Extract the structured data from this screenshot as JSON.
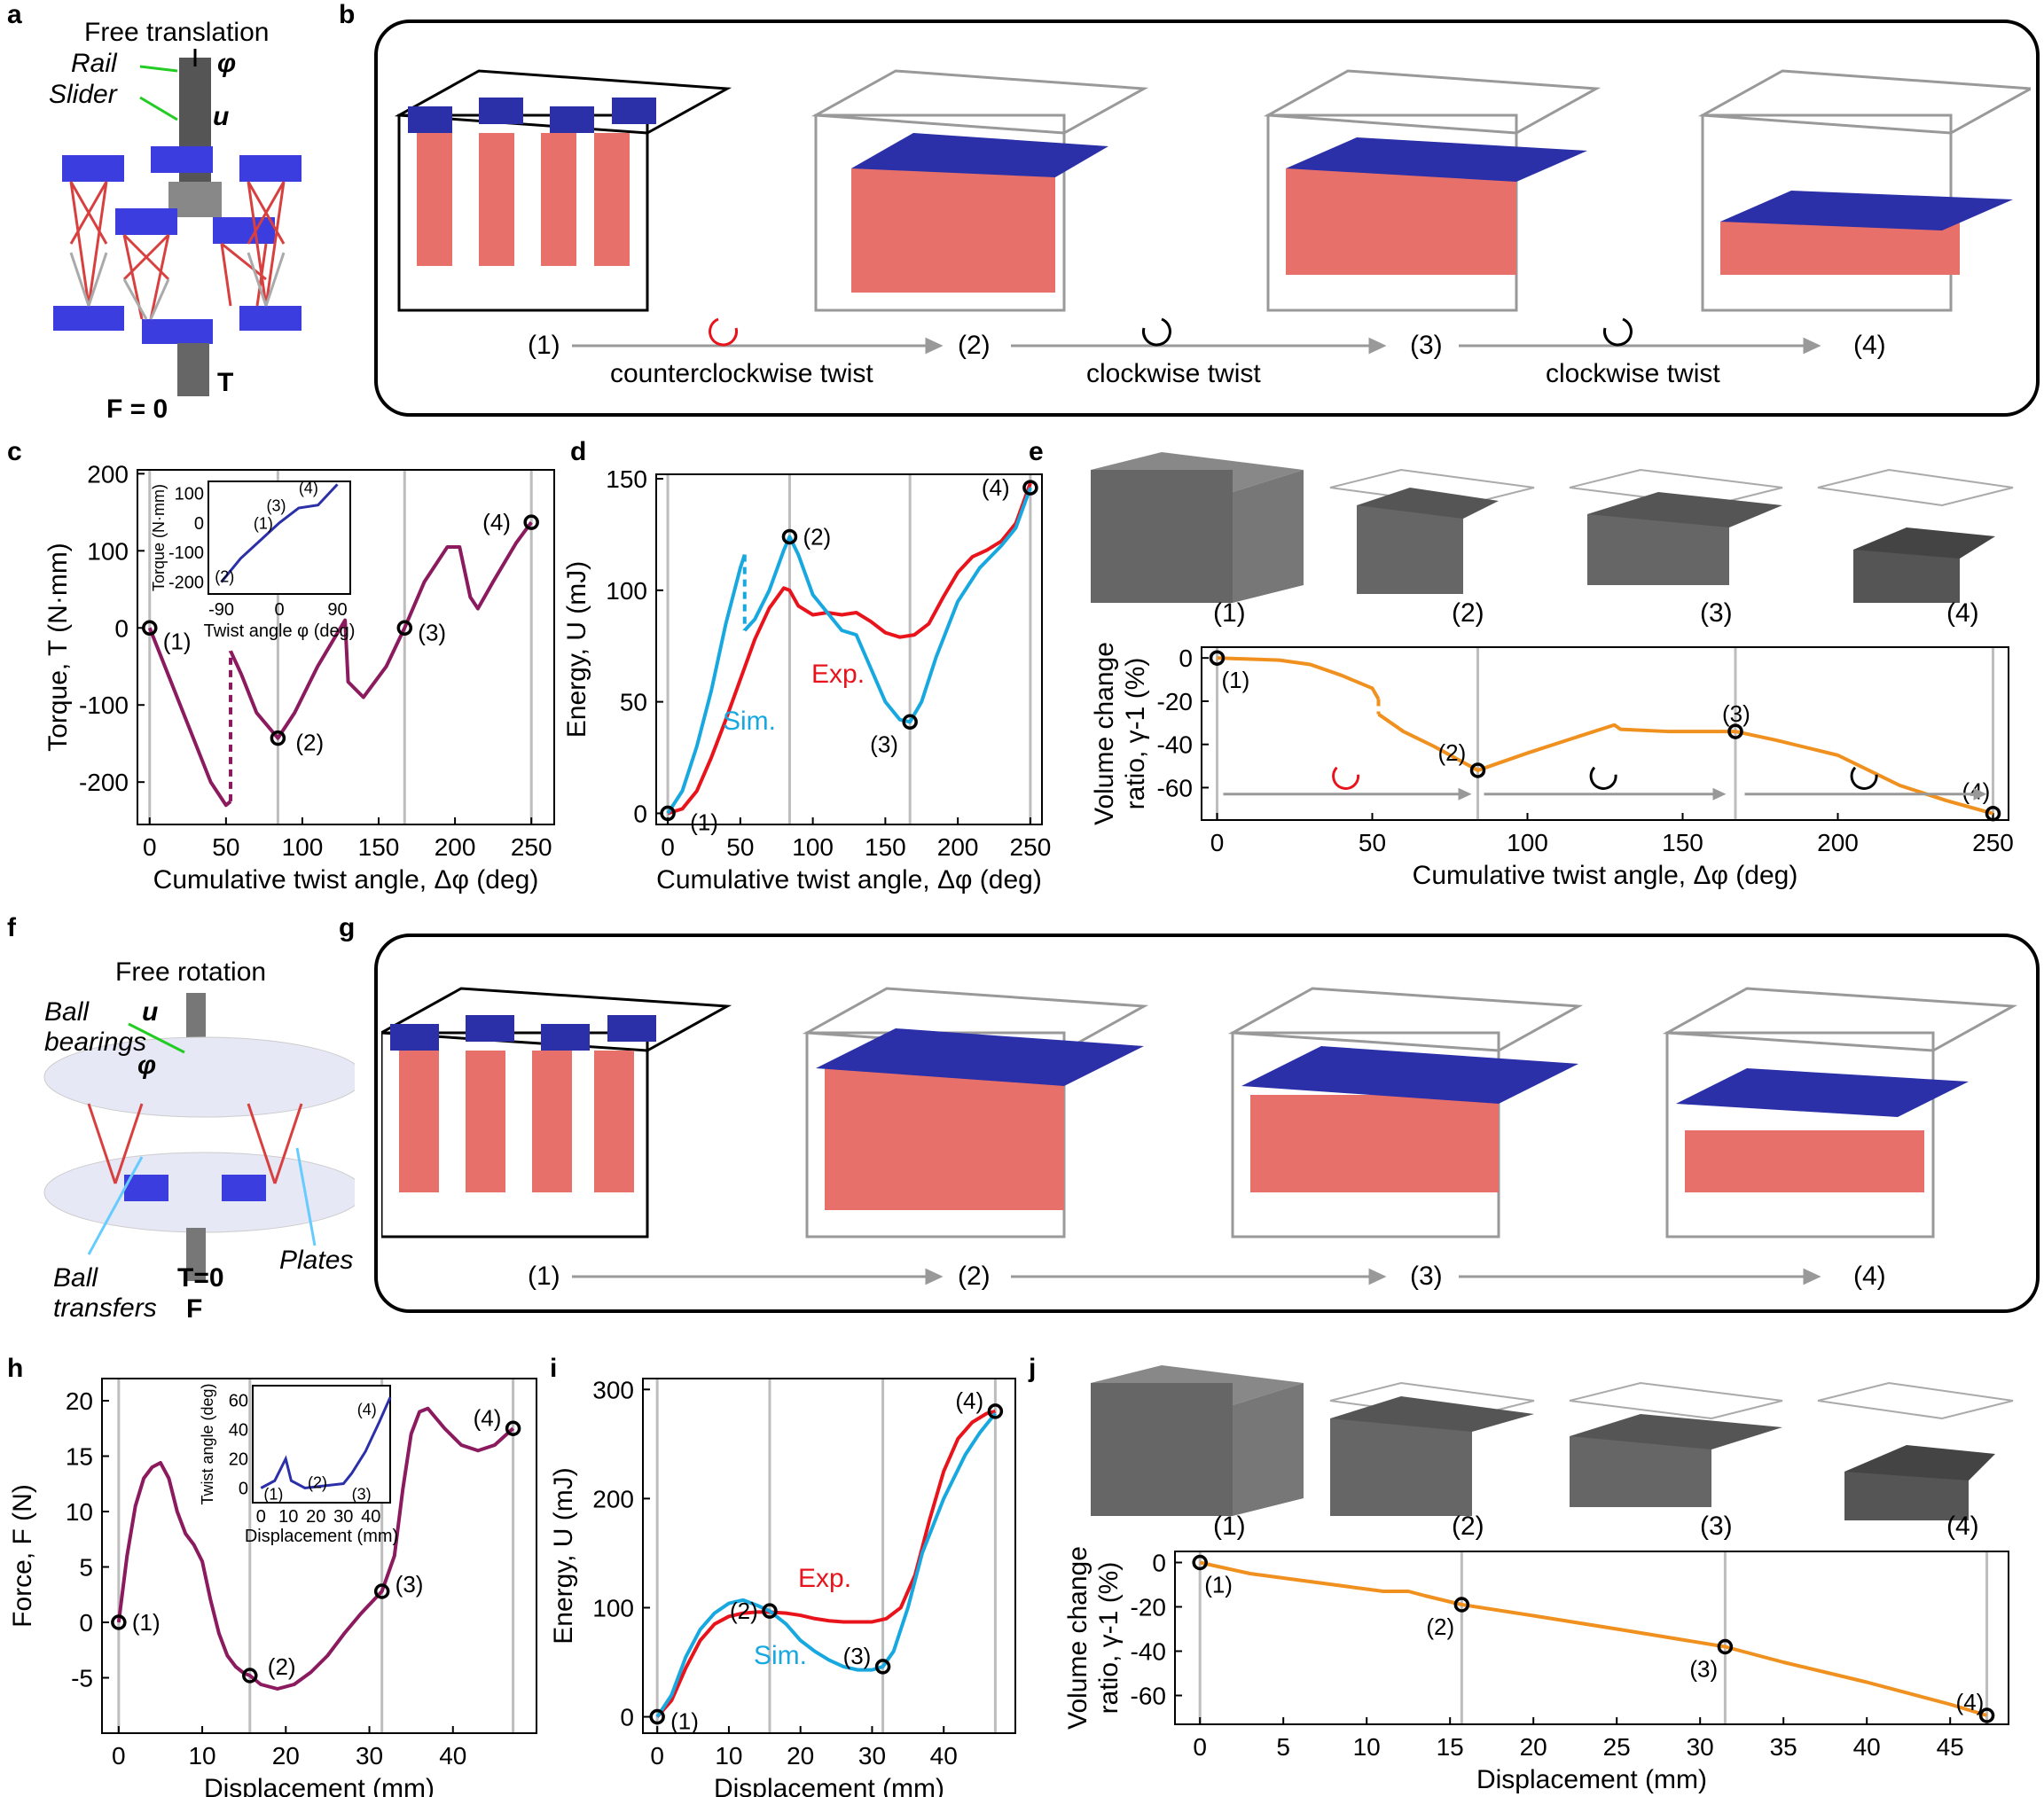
{
  "panels": {
    "a": {
      "letter": "a",
      "title": "Free translation",
      "phi": "φ",
      "u": "u",
      "rail": "Rail",
      "slider": "Slider",
      "T": "T",
      "F": "F = 0"
    },
    "b": {
      "letter": "b",
      "states": [
        "(1)",
        "(2)",
        "(3)",
        "(4)"
      ],
      "steps": [
        "counterclockwise twist",
        "clockwise twist",
        "clockwise twist"
      ]
    },
    "c": {
      "letter": "c"
    },
    "d": {
      "letter": "d"
    },
    "e": {
      "letter": "e",
      "thumb_labels": [
        "(1)",
        "(2)",
        "(3)",
        "(4)"
      ]
    },
    "f": {
      "letter": "f",
      "title": "Free rotation",
      "ball_bearings": "Ball bearings",
      "u": "u",
      "phi": "φ",
      "ball_transfers": "Ball transfers",
      "plates": "Plates",
      "T": "T=0",
      "F": "F"
    },
    "g": {
      "letter": "g",
      "states": [
        "(1)",
        "(2)",
        "(3)",
        "(4)"
      ]
    },
    "h": {
      "letter": "h"
    },
    "i": {
      "letter": "i"
    },
    "j": {
      "letter": "j",
      "thumb_labels": [
        "(1)",
        "(2)",
        "(3)",
        "(4)"
      ]
    }
  },
  "colors": {
    "purple": "#8B1A5E",
    "red": "#E8131B",
    "cyan": "#18A8E0",
    "orange": "#F0901E",
    "blue": "#2B2FA8",
    "salmon": "#E8706A",
    "gray": "#9a9a9a"
  },
  "chart_data": [
    {
      "id": "c",
      "type": "line",
      "xlabel": "Cumulative twist angle, Δφ (deg)",
      "ylabel": "Torque, T (N·mm)",
      "xlim": [
        -8,
        265
      ],
      "ylim": [
        -255,
        205
      ],
      "xticks": [
        0,
        50,
        100,
        150,
        200,
        250
      ],
      "yticks": [
        -200,
        -100,
        0,
        100,
        200
      ],
      "vlines": [
        0,
        84,
        167,
        250
      ],
      "series": [
        {
          "name": "",
          "color": "#8B1A5E",
          "x": [
            0,
            10,
            20,
            30,
            40,
            50,
            53
          ],
          "y": [
            0,
            -50,
            -100,
            -150,
            -200,
            -230,
            -225
          ]
        },
        {
          "name": "",
          "color": "#8B1A5E",
          "x": [
            53,
            60,
            70,
            84,
            95,
            110,
            128,
            130,
            140,
            155,
            167,
            180,
            195,
            203,
            210,
            215,
            225,
            240,
            250
          ],
          "y": [
            -30,
            -60,
            -110,
            -143,
            -110,
            -50,
            10,
            -70,
            -90,
            -50,
            0,
            60,
            105,
            105,
            40,
            25,
            60,
            110,
            137
          ]
        }
      ],
      "dashed": {
        "x": [
          53,
          53
        ],
        "y": [
          -225,
          -30
        ]
      },
      "markers": [
        {
          "x": 0,
          "y": 0,
          "label": "(1)"
        },
        {
          "x": 84,
          "y": -143,
          "label": "(2)"
        },
        {
          "x": 167,
          "y": 0,
          "label": "(3)"
        },
        {
          "x": 250,
          "y": 137,
          "label": "(4)"
        }
      ],
      "inset": {
        "xlabel": "Twist angle φ (deg)",
        "ylabel": "Torque (N·mm)",
        "xticks": [
          -90,
          0,
          90
        ],
        "yticks": [
          -200,
          -100,
          0,
          100
        ],
        "labels": [
          "(1)",
          "(2)",
          "(3)",
          "(4)"
        ]
      }
    },
    {
      "id": "d",
      "type": "line",
      "xlabel": "Cumulative twist angle, Δφ (deg)",
      "ylabel": "Energy, U (mJ)",
      "xlim": [
        -8,
        258
      ],
      "ylim": [
        -5,
        152
      ],
      "xticks": [
        0,
        50,
        100,
        150,
        200,
        250
      ],
      "yticks": [
        0,
        50,
        100,
        150
      ],
      "vlines": [
        0,
        84,
        167,
        250
      ],
      "series": [
        {
          "name": "Exp.",
          "color": "#E8131B",
          "x": [
            0,
            10,
            20,
            30,
            40,
            50,
            60,
            70,
            80,
            84,
            90,
            100,
            110,
            120,
            130,
            140,
            150,
            160,
            170,
            180,
            190,
            200,
            210,
            220,
            230,
            240,
            250
          ],
          "y": [
            0,
            2,
            10,
            25,
            42,
            60,
            78,
            92,
            101,
            100,
            93,
            89,
            90,
            89,
            90,
            86,
            81,
            79,
            80,
            85,
            97,
            108,
            115,
            118,
            122,
            130,
            148
          ]
        },
        {
          "name": "Sim.",
          "color": "#18A8E0",
          "x": [
            0,
            10,
            20,
            30,
            40,
            50,
            53
          ],
          "y": [
            0,
            10,
            30,
            55,
            85,
            110,
            116
          ]
        },
        {
          "name": "Sim.",
          "color": "#18A8E0",
          "x": [
            53,
            60,
            70,
            80,
            84,
            90,
            100,
            110,
            120,
            130,
            140,
            150,
            160,
            167,
            175,
            185,
            200,
            215,
            230,
            240,
            250
          ],
          "y": [
            82,
            87,
            100,
            118,
            124,
            116,
            98,
            90,
            82,
            80,
            65,
            50,
            42,
            41,
            50,
            70,
            95,
            110,
            120,
            128,
            146
          ]
        }
      ],
      "dashed": {
        "x": [
          53,
          53
        ],
        "y": [
          116,
          82
        ]
      },
      "markers": [
        {
          "x": 0,
          "y": 0,
          "label": "(1)"
        },
        {
          "x": 84,
          "y": 124,
          "label": "(2)"
        },
        {
          "x": 167,
          "y": 41,
          "label": "(3)"
        },
        {
          "x": 250,
          "y": 146,
          "label": "(4)"
        }
      ],
      "annotations": [
        "Exp.",
        "Sim."
      ]
    },
    {
      "id": "e",
      "type": "line",
      "xlabel": "Cumulative twist angle, Δφ (deg)",
      "ylabel": "Volume change ratio, γ-1 (%)",
      "xlim": [
        -5,
        255
      ],
      "ylim": [
        -75,
        5
      ],
      "xticks": [
        0,
        50,
        100,
        150,
        200,
        250
      ],
      "yticks": [
        0,
        -20,
        -40,
        -60
      ],
      "vlines": [
        0,
        84,
        167,
        250
      ],
      "series": [
        {
          "name": "",
          "color": "#F0901E",
          "x": [
            0,
            20,
            30,
            40,
            50,
            52
          ],
          "y": [
            0,
            -1,
            -3,
            -8,
            -14,
            -19
          ]
        },
        {
          "name": "",
          "color": "#F0901E",
          "x": [
            52,
            60,
            70,
            84,
            100,
            115,
            128,
            130,
            145,
            167,
            180,
            200,
            210,
            220,
            235,
            250
          ],
          "y": [
            -26,
            -34,
            -41,
            -52,
            -44,
            -37,
            -31,
            -33,
            -34,
            -34,
            -38,
            -45,
            -52,
            -59,
            -66,
            -72
          ]
        }
      ],
      "dashed": {
        "x": [
          52,
          52
        ],
        "y": [
          -19,
          -26
        ]
      },
      "markers": [
        {
          "x": 0,
          "y": 0,
          "label": "(1)"
        },
        {
          "x": 84,
          "y": -52,
          "label": "(2)"
        },
        {
          "x": 167,
          "y": -34,
          "label": "(3)"
        },
        {
          "x": 250,
          "y": -72,
          "label": "(4)"
        }
      ]
    },
    {
      "id": "h",
      "type": "line",
      "xlabel": "Displacement (mm)",
      "ylabel": "Force, F (N)",
      "xlim": [
        -2,
        50
      ],
      "ylim": [
        -10,
        22
      ],
      "xticks": [
        0,
        10,
        20,
        30,
        40
      ],
      "yticks": [
        -5,
        0,
        5,
        10,
        15,
        20
      ],
      "vlines": [
        0,
        15.7,
        31.5,
        47.2
      ],
      "series": [
        {
          "name": "",
          "color": "#8B1A5E",
          "x": [
            0,
            1,
            2,
            3,
            4,
            5,
            6,
            7,
            8,
            9,
            10,
            11,
            12,
            13,
            14,
            15,
            15.7,
            17,
            19,
            21,
            23,
            25,
            27,
            29,
            31.5,
            33,
            34,
            35,
            36,
            37,
            39,
            41,
            43,
            45,
            47.2
          ],
          "y": [
            0,
            6,
            10.5,
            13,
            14,
            14.4,
            13,
            10,
            8,
            7,
            5.5,
            2,
            -1,
            -3,
            -4,
            -4.6,
            -4.8,
            -5.6,
            -6,
            -5.6,
            -4.5,
            -3,
            -1,
            0.8,
            2.8,
            6,
            12,
            17,
            19,
            19.3,
            17.5,
            16,
            15.5,
            16,
            17.5
          ]
        }
      ],
      "markers": [
        {
          "x": 0,
          "y": 0,
          "label": "(1)"
        },
        {
          "x": 15.7,
          "y": -4.8,
          "label": "(2)"
        },
        {
          "x": 31.5,
          "y": 2.8,
          "label": "(3)"
        },
        {
          "x": 47.2,
          "y": 17.5,
          "label": "(4)"
        }
      ],
      "inset": {
        "xlabel": "Displacement (mm)",
        "ylabel": "Twist angle (deg)",
        "xticks": [
          0,
          10,
          20,
          30,
          40
        ],
        "yticks": [
          0,
          20,
          40,
          60
        ],
        "labels": [
          "(1)",
          "(2)",
          "(3)",
          "(4)"
        ]
      }
    },
    {
      "id": "i",
      "type": "line",
      "xlabel": "Displacement (mm)",
      "ylabel": "Energy, U (mJ)",
      "xlim": [
        -2,
        50
      ],
      "ylim": [
        -15,
        310
      ],
      "xticks": [
        0,
        10,
        20,
        30,
        40
      ],
      "yticks": [
        0,
        100,
        200,
        300
      ],
      "vlines": [
        0,
        15.7,
        31.5,
        47.2
      ],
      "series": [
        {
          "name": "Exp.",
          "color": "#E8131B",
          "x": [
            0,
            2,
            4,
            6,
            8,
            10,
            12,
            14,
            15.7,
            18,
            20,
            22,
            24,
            26,
            28,
            30,
            32,
            34,
            36,
            38,
            40,
            42,
            44,
            46,
            47.2
          ],
          "y": [
            0,
            15,
            45,
            70,
            85,
            92,
            95,
            96,
            96,
            95,
            93,
            90,
            88,
            87,
            87,
            87,
            90,
            100,
            130,
            180,
            225,
            255,
            270,
            278,
            280
          ]
        },
        {
          "name": "Sim.",
          "color": "#18A8E0",
          "x": [
            0,
            2,
            4,
            6,
            8,
            10,
            12,
            14,
            15.7,
            18,
            20,
            22,
            24,
            26,
            28,
            30,
            31.5,
            33,
            35,
            37,
            40,
            43,
            45,
            47.2
          ],
          "y": [
            0,
            20,
            55,
            80,
            95,
            104,
            107,
            102,
            97,
            85,
            70,
            60,
            52,
            46,
            43,
            43,
            46,
            60,
            100,
            150,
            200,
            240,
            260,
            278
          ]
        }
      ],
      "markers": [
        {
          "x": 0,
          "y": 0,
          "label": "(1)"
        },
        {
          "x": 15.7,
          "y": 97,
          "label": "(2)"
        },
        {
          "x": 31.5,
          "y": 46,
          "label": "(3)"
        },
        {
          "x": 47.2,
          "y": 280,
          "label": "(4)"
        }
      ],
      "annotations": [
        "Exp.",
        "Sim."
      ]
    },
    {
      "id": "j",
      "type": "line",
      "xlabel": "Displacement (mm)",
      "ylabel": "Volume change ratio, γ-1 (%)",
      "xlim": [
        -1.5,
        48.5
      ],
      "ylim": [
        -73,
        5
      ],
      "xticks": [
        0,
        5,
        10,
        15,
        20,
        25,
        30,
        35,
        40,
        45
      ],
      "yticks": [
        0,
        -20,
        -40,
        -60
      ],
      "vlines": [
        0,
        15.7,
        31.5,
        47.2
      ],
      "series": [
        {
          "name": "",
          "color": "#F0901E",
          "x": [
            0,
            3,
            6,
            9,
            11,
            12.5,
            13.5,
            15.7,
            20,
            25,
            31.5,
            35,
            40,
            45,
            47.2
          ],
          "y": [
            0,
            -5,
            -8,
            -11,
            -13,
            -13,
            -15,
            -19,
            -24,
            -30,
            -38,
            -45,
            -54,
            -64,
            -69
          ]
        }
      ],
      "markers": [
        {
          "x": 0,
          "y": 0,
          "label": "(1)"
        },
        {
          "x": 15.7,
          "y": -19,
          "label": "(2)"
        },
        {
          "x": 31.5,
          "y": -38,
          "label": "(3)"
        },
        {
          "x": 47.2,
          "y": -69,
          "label": "(4)"
        }
      ]
    }
  ]
}
